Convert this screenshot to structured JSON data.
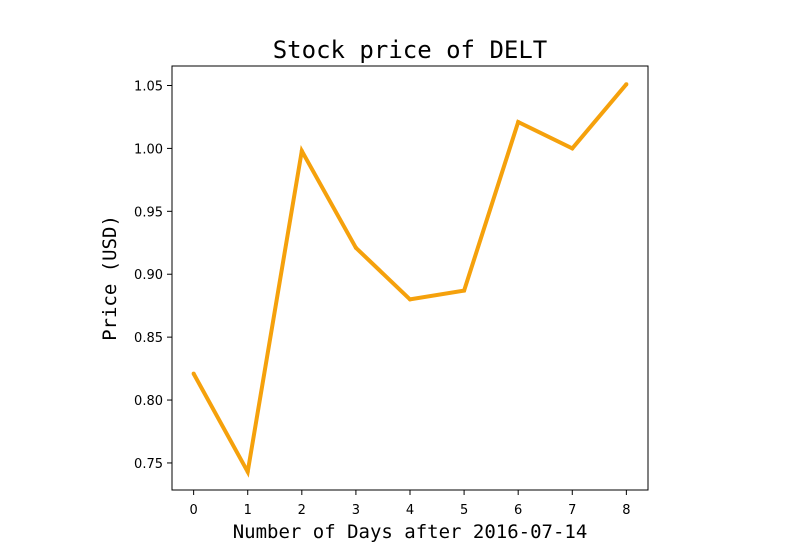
{
  "chart_data": {
    "type": "line",
    "title": "Stock price of DELT",
    "xlabel": "Number of Days after 2016-07-14",
    "ylabel": "Price (USD)",
    "x": [
      0,
      1,
      2,
      3,
      4,
      5,
      6,
      7,
      8
    ],
    "series": [
      {
        "values": [
          0.821,
          0.743,
          0.998,
          0.921,
          0.88,
          0.887,
          1.021,
          1.0,
          1.051
        ],
        "color": "#f5a10c"
      }
    ],
    "xticks": [
      "0",
      "1",
      "2",
      "3",
      "4",
      "5",
      "6",
      "7",
      "8"
    ],
    "yticks": [
      "0.75",
      "0.80",
      "0.85",
      "0.90",
      "0.95",
      "1.00",
      "1.05"
    ],
    "xlim": [
      -0.4,
      8.4
    ],
    "ylim": [
      0.7285,
      1.0655
    ],
    "grid": false,
    "legend": "none"
  }
}
